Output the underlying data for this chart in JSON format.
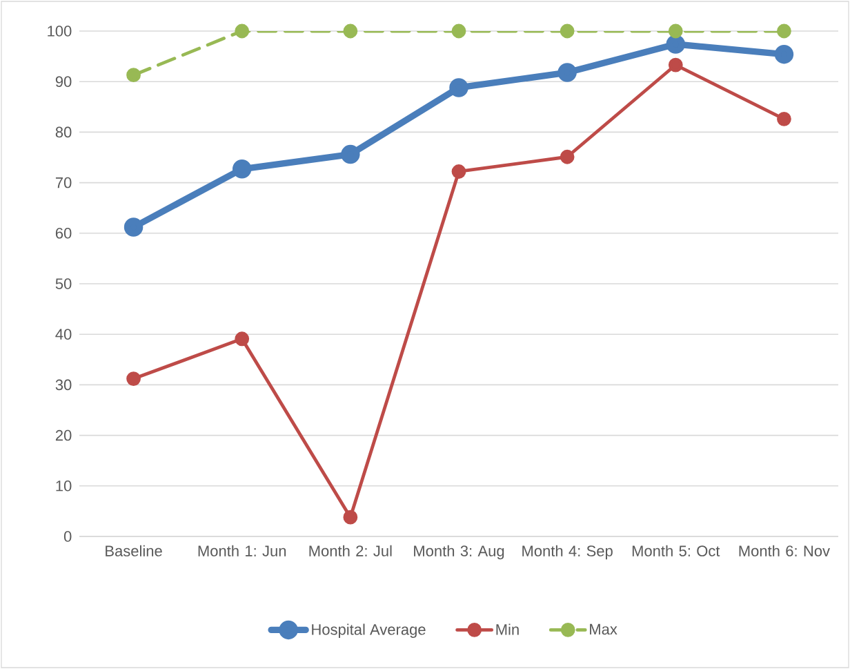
{
  "chart_data": {
    "type": "line",
    "categories": [
      "Baseline",
      "Month 1: Jun",
      "Month 2: Jul",
      "Month 3: Aug",
      "Month 4: Sep",
      "Month 5: Oct",
      "Month 6: Nov"
    ],
    "series": [
      {
        "name": "Hospital Average",
        "color": "#4a7ebb",
        "values": [
          61.2,
          72.7,
          75.6,
          88.8,
          91.8,
          97.4,
          95.4
        ]
      },
      {
        "name": "Min",
        "color": "#be4b48",
        "values": [
          31.2,
          39.1,
          3.8,
          72.2,
          75.1,
          93.3,
          82.6
        ]
      },
      {
        "name": "Max",
        "color": "#98b954",
        "line_style": "dashed",
        "values": [
          91.3,
          100,
          100,
          100,
          100,
          100,
          100
        ]
      }
    ],
    "ylim": [
      0,
      100
    ],
    "yticks": [
      0,
      10,
      20,
      30,
      40,
      50,
      60,
      70,
      80,
      90,
      100
    ],
    "grid": "y",
    "legend": "bottom",
    "marker": "circle"
  }
}
